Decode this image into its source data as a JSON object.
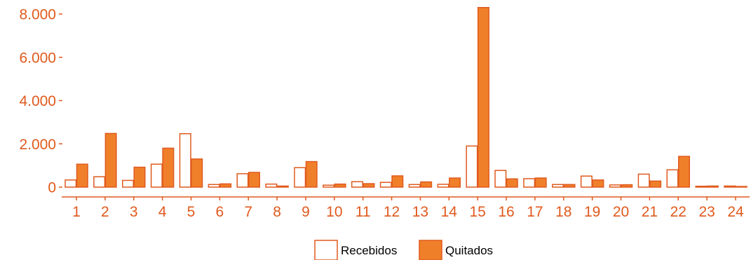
{
  "chart_data": {
    "type": "bar",
    "categories": [
      "1",
      "2",
      "3",
      "4",
      "5",
      "6",
      "7",
      "8",
      "9",
      "10",
      "11",
      "12",
      "13",
      "14",
      "15",
      "16",
      "17",
      "18",
      "19",
      "20",
      "21",
      "22",
      "23",
      "24"
    ],
    "series": [
      {
        "name": "Recebidos",
        "fill": "#ffffff",
        "stroke": "#E05A1E",
        "values": [
          330,
          480,
          310,
          1060,
          2470,
          120,
          620,
          140,
          900,
          90,
          250,
          220,
          120,
          130,
          1900,
          770,
          390,
          120,
          510,
          100,
          600,
          800,
          40,
          50
        ]
      },
      {
        "name": "Quitados",
        "fill": "#F07F2A",
        "stroke": "#E05A1E",
        "values": [
          1060,
          2480,
          920,
          1800,
          1300,
          150,
          680,
          50,
          1180,
          140,
          160,
          520,
          240,
          420,
          8300,
          380,
          420,
          120,
          330,
          110,
          280,
          1420,
          50,
          30
        ]
      }
    ],
    "y_ticks": [
      0,
      2000,
      4000,
      6000,
      8000
    ],
    "y_tick_labels": [
      "0",
      "2.000",
      "4.000",
      "6.000",
      "8.000"
    ],
    "ylim": [
      0,
      8500
    ],
    "legend_position": "bottom",
    "grid": false,
    "axis_color": "#E05A1E"
  }
}
